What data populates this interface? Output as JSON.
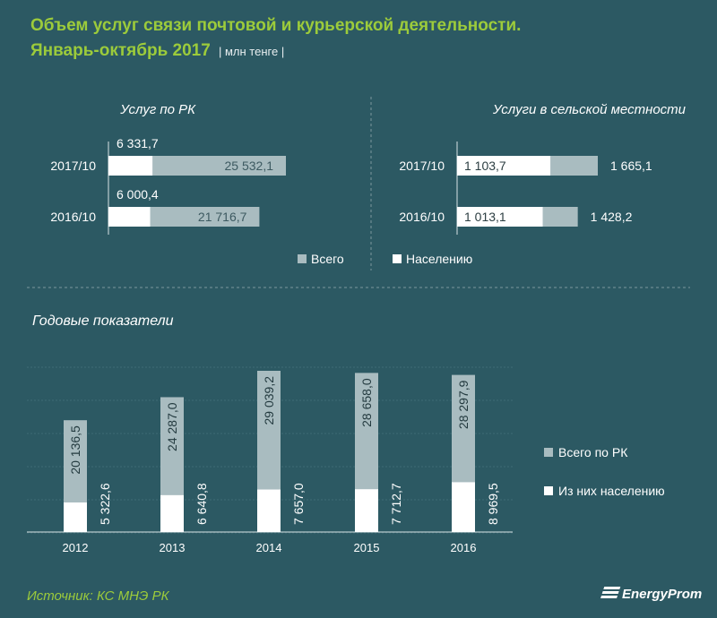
{
  "header": {
    "title_line1": "Объем услуг связи почтовой и курьерской деятельности.",
    "title_line2": "Январь-октябрь 2017",
    "unit": "| млн тенге |"
  },
  "colors": {
    "background": "#2c5963",
    "total": "#a9bcc0",
    "population": "#ffffff",
    "accent": "#9ccb3b"
  },
  "chart_data": [
    {
      "type": "bar",
      "orientation": "horizontal",
      "title": "Услуг по РК",
      "categories": [
        "2017/10",
        "2016/10"
      ],
      "series": [
        {
          "name": "Всего",
          "values": [
            25532.1,
            21716.7
          ],
          "labels": [
            "25 532,1",
            "21 716,7"
          ]
        },
        {
          "name": "Населению",
          "values": [
            6331.7,
            6000.4
          ],
          "labels": [
            "6 331,7",
            "6 000,4"
          ]
        }
      ],
      "xlim": [
        0,
        50000
      ]
    },
    {
      "type": "bar",
      "orientation": "horizontal",
      "title": "Услуги в сельской местности",
      "categories": [
        "2017/10",
        "2016/10"
      ],
      "series": [
        {
          "name": "Всего",
          "values": [
            1665.1,
            1428.2
          ],
          "labels": [
            "1 665,1",
            "1 428,2"
          ]
        },
        {
          "name": "Населению",
          "values": [
            1103.7,
            1013.1
          ],
          "labels": [
            "1 103,7",
            "1 013,1"
          ]
        }
      ],
      "xlim": [
        0,
        3000
      ]
    },
    {
      "type": "bar",
      "orientation": "vertical",
      "title": "Годовые показатели",
      "categories": [
        "2012",
        "2013",
        "2014",
        "2015",
        "2016"
      ],
      "series": [
        {
          "name": "Всего по РК",
          "values": [
            20136.5,
            24287.0,
            29039.2,
            28658.0,
            28297.9
          ],
          "labels": [
            "20 136,5",
            "24 287,0",
            "29 039,2",
            "28 658,0",
            "28 297,9"
          ]
        },
        {
          "name": "Из них населению",
          "values": [
            5322.6,
            6640.8,
            7657.0,
            7712.7,
            8969.5
          ],
          "labels": [
            "5 322,6",
            "6 640,8",
            "7 657,0",
            "7 712,7",
            "8 969,5"
          ]
        }
      ],
      "ylim": [
        0,
        35000
      ]
    }
  ],
  "legends": {
    "top": [
      "Всего",
      "Населению"
    ],
    "annual": [
      "Всего по РК",
      "Из них населению"
    ]
  },
  "footer": {
    "source": "Источник: КС МНЭ РК",
    "logo": "EnergyProm"
  }
}
